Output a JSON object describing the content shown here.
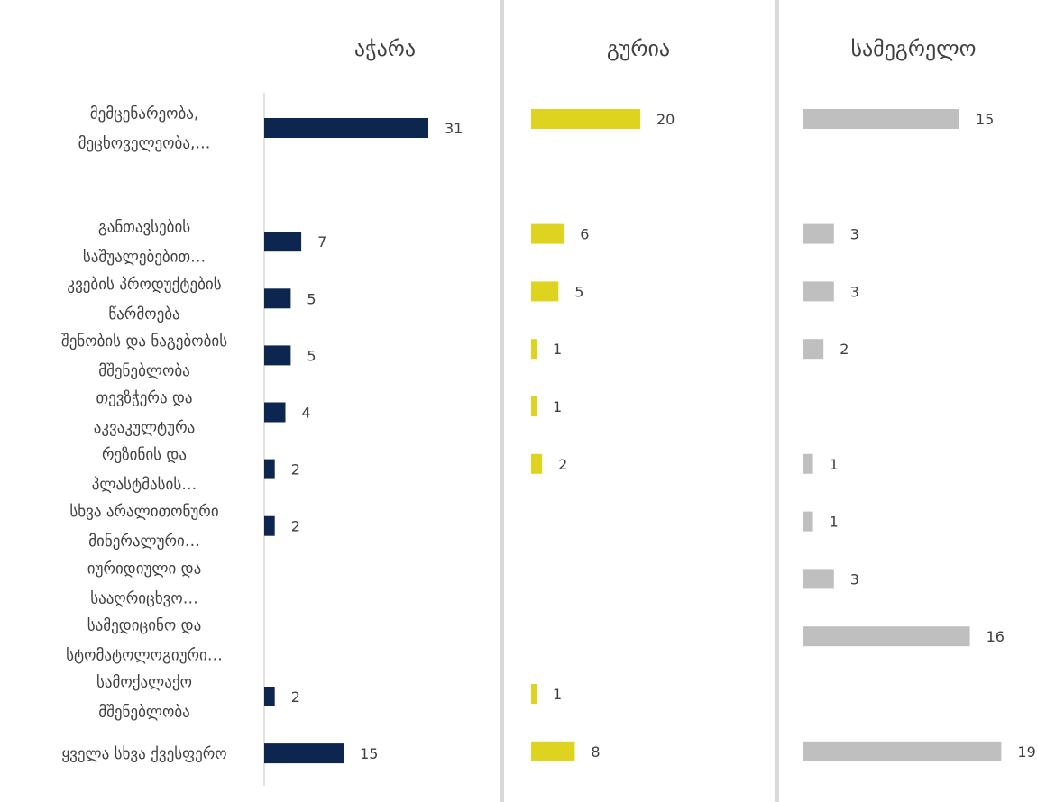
{
  "chart_data": {
    "type": "bar",
    "orientation": "horizontal",
    "grid": false,
    "categories": [
      [
        "მემცენარეობა,",
        "მეცხოველეობა,…"
      ],
      [
        "განთავსების",
        "საშუალებებით…"
      ],
      [
        "კვების პროდუქტების",
        "წარმოება"
      ],
      [
        "შენობის და ნაგებობის",
        "მშენებლობა"
      ],
      [
        "თევზჭერა და",
        "აკვაკულტურა"
      ],
      [
        "რეზინის და",
        "პლასტმასის…"
      ],
      [
        "სხვა არალითონური",
        "მინერალური…"
      ],
      [
        "იურიდიული და",
        "სააღრიცხვო…"
      ],
      [
        "სამედიცინო და",
        "სტომატოლოგიური…"
      ],
      [
        "სამოქალაქო",
        "მშენებლობა"
      ],
      [
        "ყველა სხვა ქვესფერო"
      ]
    ],
    "series": [
      {
        "name": "აჭარა",
        "color": "#0d2650",
        "values": [
          31,
          7,
          5,
          5,
          4,
          2,
          2,
          null,
          null,
          2,
          15
        ]
      },
      {
        "name": "გურია",
        "color": "#ded420",
        "values": [
          20,
          6,
          5,
          1,
          1,
          2,
          null,
          null,
          null,
          1,
          8
        ]
      },
      {
        "name": "სამეგრელო",
        "color": "#bfbfbf",
        "values": [
          15,
          3,
          3,
          2,
          null,
          1,
          1,
          3,
          16,
          null,
          19
        ]
      }
    ]
  }
}
